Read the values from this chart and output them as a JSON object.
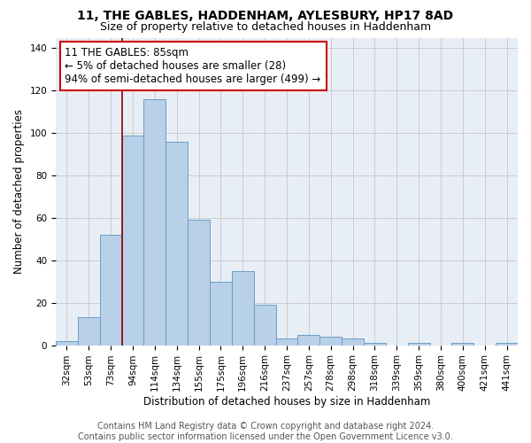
{
  "title": "11, THE GABLES, HADDENHAM, AYLESBURY, HP17 8AD",
  "subtitle": "Size of property relative to detached houses in Haddenham",
  "xlabel": "Distribution of detached houses by size in Haddenham",
  "ylabel": "Number of detached properties",
  "categories": [
    "32sqm",
    "53sqm",
    "73sqm",
    "94sqm",
    "114sqm",
    "134sqm",
    "155sqm",
    "175sqm",
    "196sqm",
    "216sqm",
    "237sqm",
    "257sqm",
    "278sqm",
    "298sqm",
    "318sqm",
    "339sqm",
    "359sqm",
    "380sqm",
    "400sqm",
    "421sqm",
    "441sqm"
  ],
  "values": [
    2,
    13,
    52,
    99,
    116,
    96,
    59,
    30,
    35,
    19,
    3,
    5,
    4,
    3,
    1,
    0,
    1,
    0,
    1,
    0,
    1
  ],
  "bar_color": "#b8d0e8",
  "bar_edge_color": "#6aa0c8",
  "bar_width": 1.0,
  "vline_x_idx": 2,
  "vline_color": "#8b0000",
  "annotation_text": "11 THE GABLES: 85sqm\n← 5% of detached houses are smaller (28)\n94% of semi-detached houses are larger (499) →",
  "annotation_box_color": "#ffffff",
  "annotation_box_edge": "#cc0000",
  "ylim": [
    0,
    145
  ],
  "yticks": [
    0,
    20,
    40,
    60,
    80,
    100,
    120,
    140
  ],
  "grid_color": "#cccccc",
  "bg_color": "#e8eef5",
  "footer1": "Contains HM Land Registry data © Crown copyright and database right 2024.",
  "footer2": "Contains public sector information licensed under the Open Government Licence v3.0.",
  "title_fontsize": 10,
  "subtitle_fontsize": 9,
  "axis_label_fontsize": 8.5,
  "tick_fontsize": 7.5,
  "annotation_fontsize": 8.5,
  "footer_fontsize": 7
}
